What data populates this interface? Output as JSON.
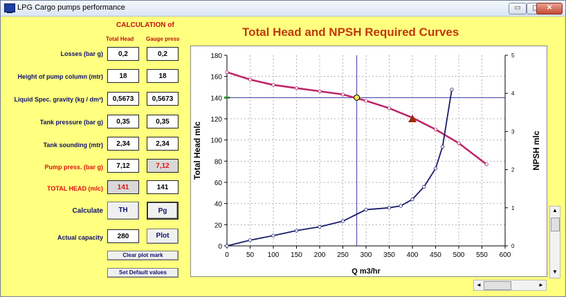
{
  "window": {
    "title": "LPG Cargo pumps performance",
    "minimize": "▭",
    "maximize": "▢",
    "close": "✕"
  },
  "calc": {
    "title": "CALCULATION of",
    "col_total": "Total Head",
    "col_gauge": "Gauge press",
    "rows": [
      {
        "label": "Losses (bar g)",
        "total": "0,2",
        "gauge": "0,2"
      },
      {
        "label": "Height of pump column (mtr)",
        "total": "18",
        "gauge": "18"
      },
      {
        "label": "Liquid Spec. gravity  (kg / dm³)",
        "total": "0,5673",
        "gauge": "0,5673"
      },
      {
        "label": "Tank pressure (bar g)",
        "total": "0,35",
        "gauge": "0,35"
      },
      {
        "label": "Tank sounding (mtr)",
        "total": "2,34",
        "gauge": "2,34"
      },
      {
        "label": "Pump  press. (bar g)",
        "total": "7,12",
        "gauge": "7,12"
      },
      {
        "label": "TOTAL HEAD (mlc)",
        "total": "141",
        "gauge": "141"
      }
    ],
    "calculate_label": "Calculate",
    "th_button": "TH",
    "pg_button": "Pg",
    "capacity_label": "Actual capacity",
    "capacity_value": "280",
    "plot_button": "Plot",
    "clear_button": "Clear plot mark",
    "default_button": "Set Default values"
  },
  "chart_data": {
    "type": "line",
    "title": "Total Head and NPSH Required Curves",
    "xlabel": "Q m3/hr",
    "ylabel": "Total Head  mlc",
    "y2label": "NPSH mlc",
    "xlim": [
      0,
      600
    ],
    "ylim": [
      0,
      180
    ],
    "y2lim": [
      0,
      5
    ],
    "xticks": [
      0,
      50,
      100,
      150,
      200,
      250,
      300,
      350,
      400,
      450,
      500,
      550,
      600
    ],
    "yticks": [
      0,
      20,
      40,
      60,
      80,
      100,
      120,
      140,
      160,
      180
    ],
    "y2ticks": [
      0,
      1,
      2,
      3,
      4,
      5
    ],
    "grid": true,
    "series": [
      {
        "role": "total-head",
        "color": "#c0246a",
        "x": [
          0,
          50,
          100,
          150,
          200,
          250,
          300,
          350,
          400,
          450,
          500,
          560
        ],
        "y": [
          164,
          157,
          152,
          149,
          146,
          143,
          137,
          130,
          121,
          110,
          97,
          77
        ]
      },
      {
        "role": "npsh",
        "color": "#1a1a6e",
        "x": [
          0,
          50,
          100,
          150,
          200,
          250,
          300,
          350,
          375,
          400,
          425,
          450,
          465,
          485
        ],
        "y": [
          0,
          0.15,
          0.27,
          0.4,
          0.5,
          0.65,
          0.95,
          1.0,
          1.05,
          1.22,
          1.55,
          2.03,
          2.6,
          4.1
        ]
      }
    ],
    "crosshair": {
      "x": 280,
      "y": 140,
      "color": "#3a3aa8"
    },
    "marker": {
      "x": 400,
      "y": 120,
      "color": "#a02a0a"
    },
    "left_marker": {
      "y": 140,
      "color": "#2a8a2a"
    }
  },
  "scroll": {
    "up": "▲",
    "down": "▼",
    "left": "◄",
    "right": "►"
  }
}
